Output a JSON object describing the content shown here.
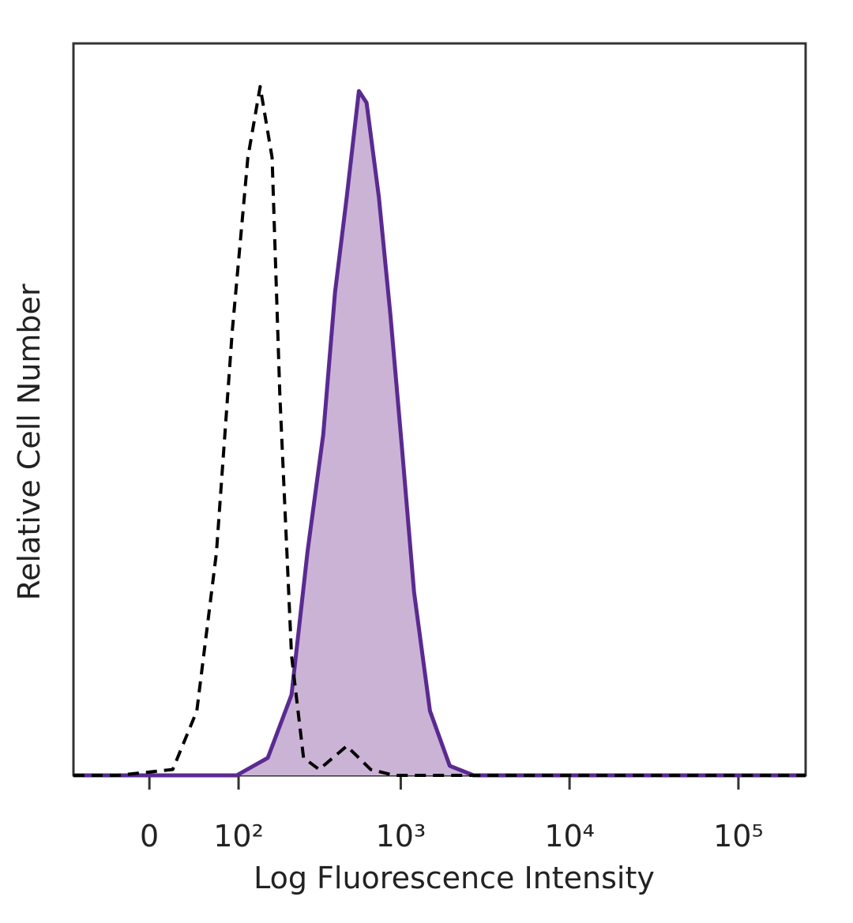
{
  "chart_data": {
    "type": "histogram-overlay",
    "xlabel": "Log Fluorescence Intensity",
    "ylabel": "Relative Cell Number",
    "xscale": "asinh",
    "xlim": [
      -80,
      250000
    ],
    "ylim": [
      0,
      100
    ],
    "xticks": [
      0,
      {
        "value": 100,
        "label": "10²"
      },
      {
        "value": 1000,
        "label": "10³"
      },
      {
        "value": 10000,
        "label": "10⁴"
      },
      {
        "value": 100000,
        "label": "10⁵"
      }
    ],
    "series": [
      {
        "fill": "#cbb3d6",
        "color": "#5a2a91",
        "dash": false,
        "x": [
          -80,
          97,
          157,
          221,
          277,
          345,
          406,
          477,
          564,
          626,
          741,
          869,
          1020,
          1200,
          1490,
          1950,
          2700,
          250000
        ],
        "values": [
          0,
          0,
          2.4,
          11,
          30.6,
          46.6,
          66,
          79,
          93.5,
          91.9,
          79,
          62.8,
          44.4,
          25,
          8.8,
          1.3,
          0,
          0
        ]
      },
      {
        "fill": "none",
        "color": "#000000",
        "dash": true,
        "x": [
          -80,
          -29,
          21,
          45,
          68,
          90,
          116,
          140,
          167,
          187,
          221,
          262,
          326,
          477,
          663,
          916,
          250000
        ],
        "values": [
          0,
          0,
          0.8,
          8.8,
          30.4,
          60.6,
          84.4,
          94.1,
          84.4,
          52,
          16.4,
          2.4,
          0.8,
          4,
          0.8,
          0,
          0
        ]
      }
    ]
  }
}
